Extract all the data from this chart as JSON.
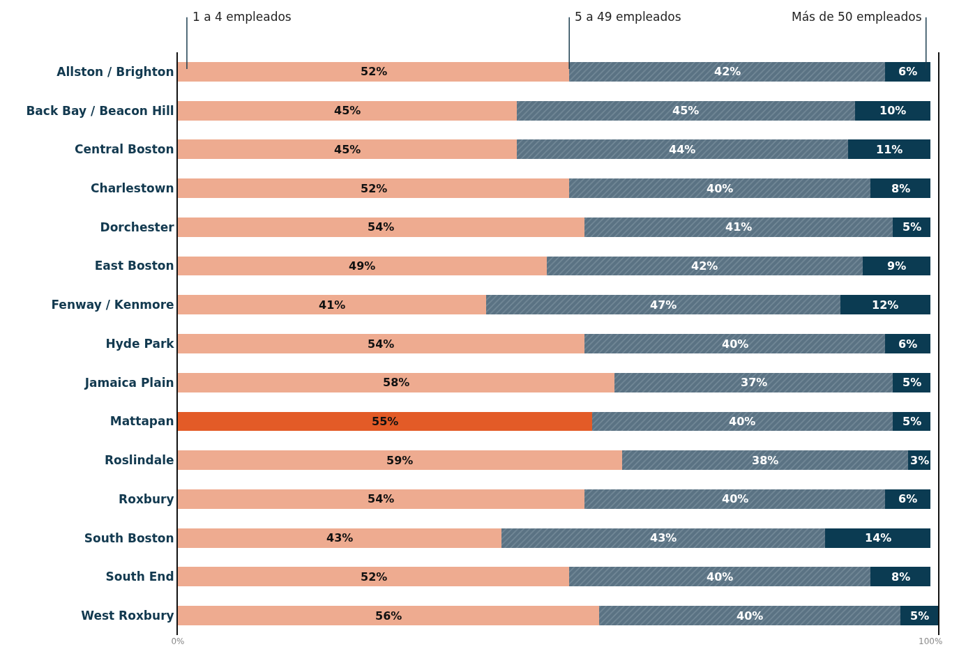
{
  "chart_data": {
    "type": "bar",
    "orientation": "horizontal",
    "stacked": true,
    "legend": false,
    "categories": [
      "Allston / Brighton",
      "Back Bay / Beacon Hill",
      "Central Boston",
      "Charlestown",
      "Dorchester",
      "East Boston",
      "Fenway / Kenmore",
      "Hyde Park",
      "Jamaica Plain",
      "Mattapan",
      "Roslindale",
      "Roxbury",
      "South Boston",
      "South End",
      "West Roxbury"
    ],
    "xlim": [
      0,
      101
    ],
    "xticks": [
      {
        "value": 0,
        "label": "0%"
      },
      {
        "value": 100,
        "label": "100%"
      }
    ],
    "series": [
      {
        "name": "1 a 4 empleados",
        "color": "#eeab90",
        "colors": [
          "#eeab90",
          "#eeab90",
          "#eeab90",
          "#eeab90",
          "#eeab90",
          "#eeab90",
          "#eeab90",
          "#eeab90",
          "#eeab90",
          "#e35b27",
          "#eeab90",
          "#eeab90",
          "#eeab90",
          "#eeab90",
          "#eeab90"
        ],
        "values": [
          52,
          45,
          45,
          52,
          54,
          49,
          41,
          54,
          58,
          55,
          59,
          54,
          43,
          52,
          56
        ],
        "value_labels": [
          "52%",
          "45%",
          "45%",
          "52%",
          "54%",
          "49%",
          "41%",
          "54%",
          "58%",
          "55%",
          "59%",
          "54%",
          "43%",
          "52%",
          "56%"
        ]
      },
      {
        "name": "5 a 49 empleados",
        "color": "#5a7283",
        "values": [
          42,
          45,
          44,
          40,
          41,
          42,
          47,
          40,
          37,
          40,
          38,
          40,
          43,
          40,
          40
        ],
        "value_labels": [
          "42%",
          "45%",
          "44%",
          "40%",
          "41%",
          "42%",
          "47%",
          "40%",
          "37%",
          "40%",
          "38%",
          "40%",
          "43%",
          "40%",
          "40%"
        ]
      },
      {
        "name": "Más de 50 empleados",
        "color": "#0b3b52",
        "values": [
          6,
          10,
          11,
          8,
          5,
          9,
          12,
          6,
          5,
          5,
          3,
          6,
          14,
          8,
          5
        ],
        "value_labels": [
          "6%",
          "10%",
          "11%",
          "8%",
          "5%",
          "9%",
          "12%",
          "6%",
          "5%",
          "5%",
          "3%",
          "6%",
          "14%",
          "8%",
          "5%"
        ]
      }
    ]
  }
}
